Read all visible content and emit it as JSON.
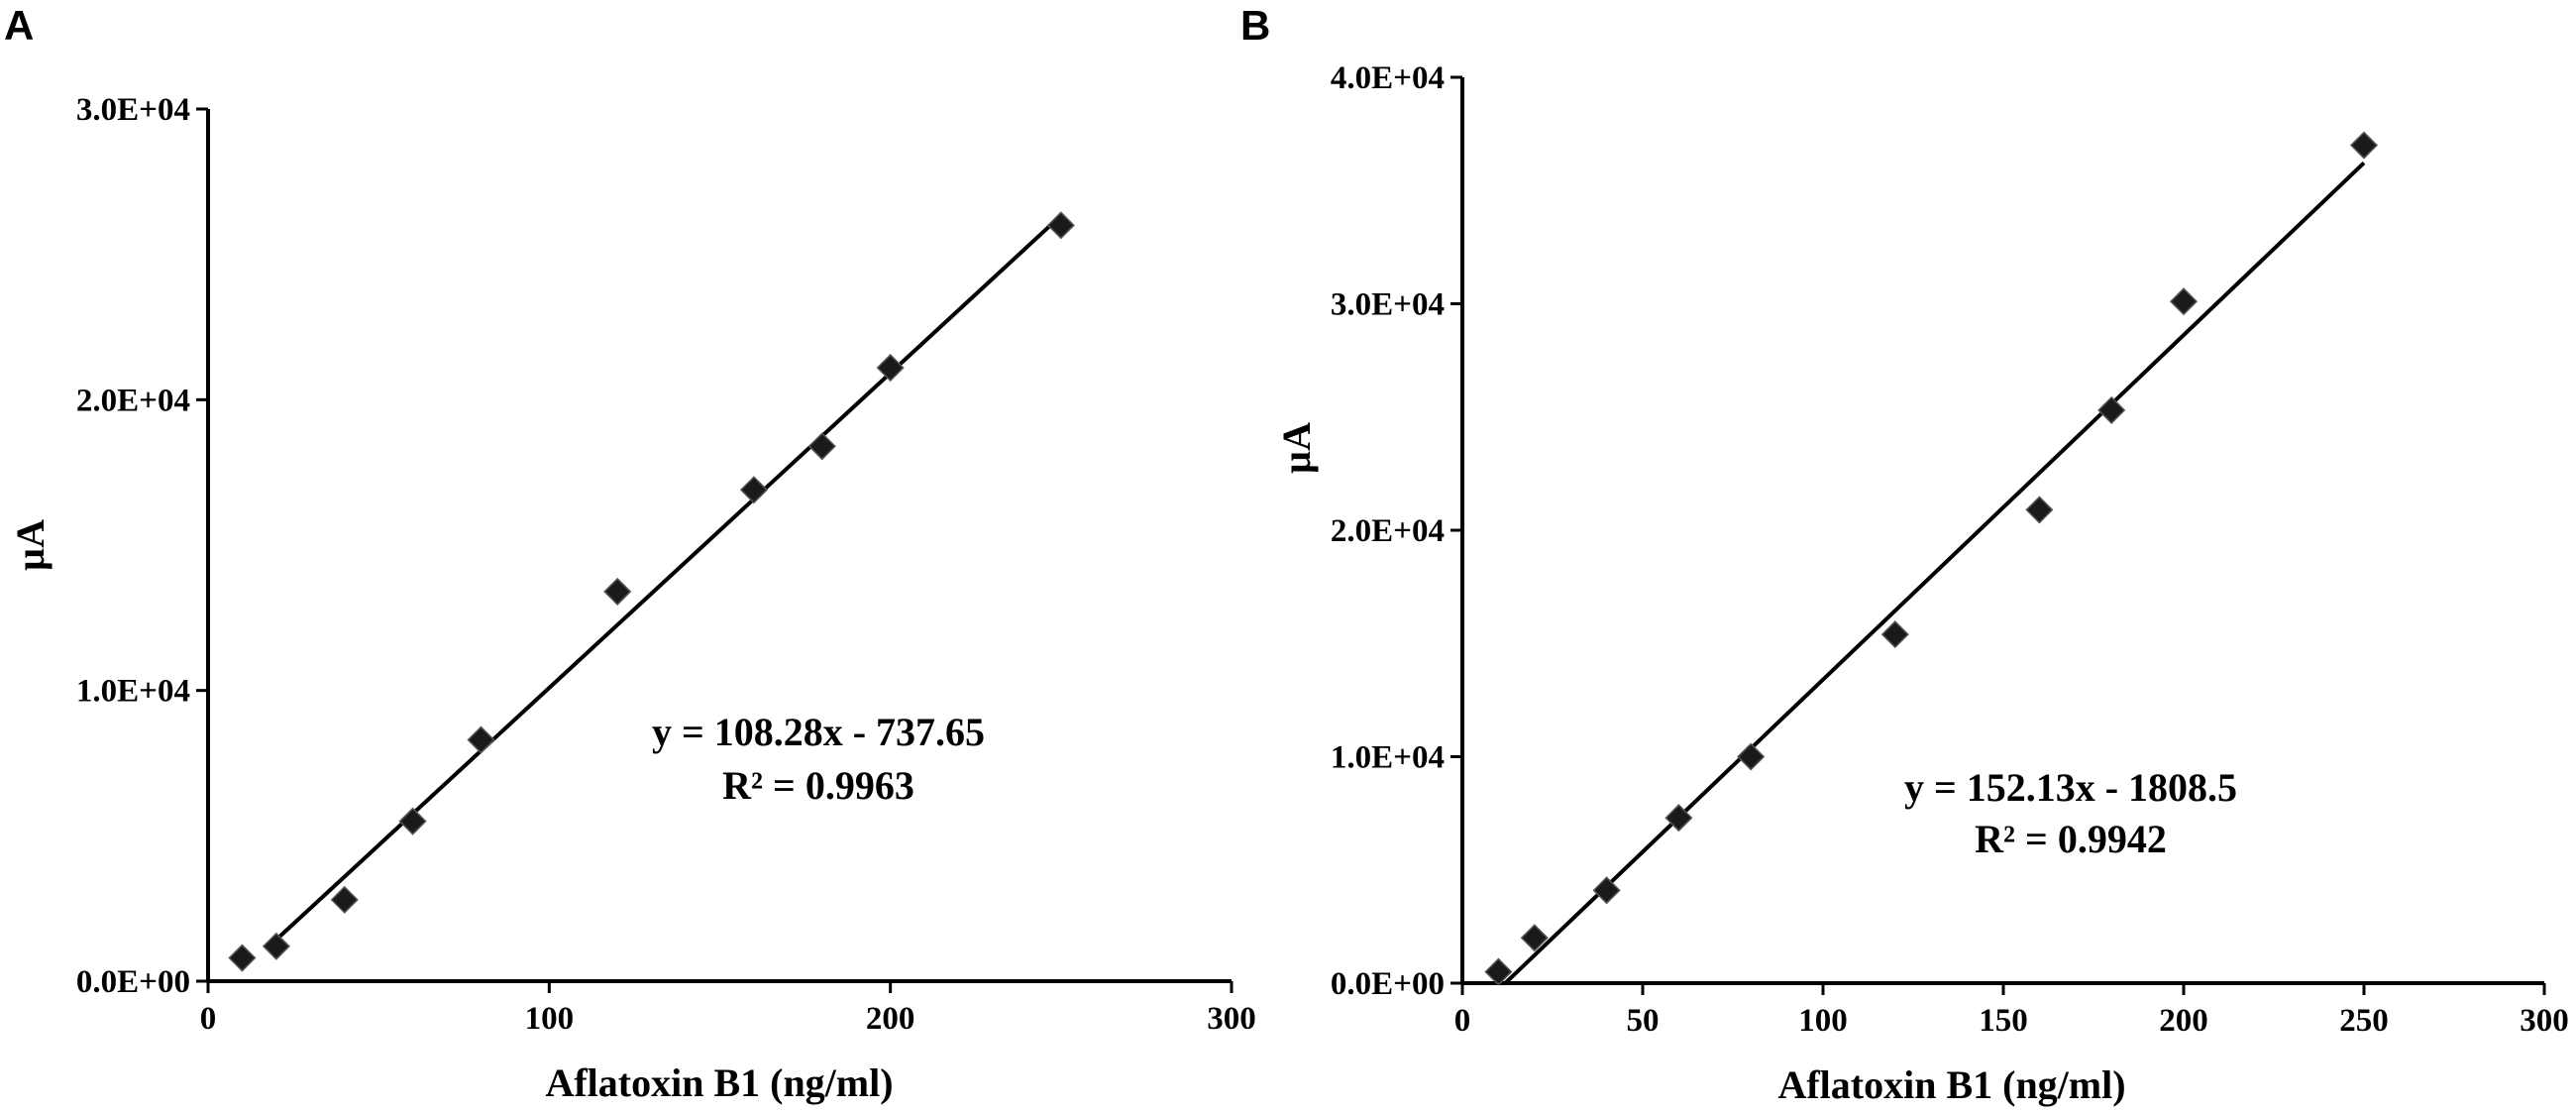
{
  "chart_data": [
    {
      "panel": "A",
      "type": "scatter",
      "xlabel": "Aflatoxin B1 (ng/ml)",
      "ylabel": "µA",
      "xlim": [
        0,
        300
      ],
      "ylim": [
        0,
        30000
      ],
      "x_ticks": [
        "0",
        "100",
        "200",
        "300"
      ],
      "y_ticks": [
        "0.0E+00",
        "1.0E+04",
        "2.0E+04",
        "3.0E+04"
      ],
      "series": [
        {
          "x": [
            10,
            20,
            40,
            60,
            80,
            120,
            160,
            180,
            200,
            250
          ],
          "y": [
            800,
            1200,
            2800,
            5500,
            8300,
            13400,
            16900,
            18400,
            21100,
            26000
          ]
        }
      ],
      "trendline": {
        "slope": 108.28,
        "intercept": -737.65,
        "x_range": [
          17,
          250
        ]
      },
      "equation": "y = 108.28x - 737.65",
      "r2": "R² = 0.9963"
    },
    {
      "panel": "B",
      "type": "scatter",
      "xlabel": "Aflatoxin B1 (ng/ml)",
      "ylabel": "µA",
      "xlim": [
        0,
        300
      ],
      "ylim": [
        0,
        40000
      ],
      "x_ticks": [
        "0",
        "50",
        "100",
        "150",
        "200",
        "250",
        "300"
      ],
      "y_ticks": [
        "0.0E+00",
        "1.0E+04",
        "2.0E+04",
        "3.0E+04",
        "4.0E+04"
      ],
      "series": [
        {
          "x": [
            10,
            20,
            40,
            60,
            80,
            120,
            160,
            180,
            200,
            250
          ],
          "y": [
            500,
            2000,
            4100,
            7300,
            10000,
            15400,
            20900,
            25300,
            30100,
            37000
          ]
        }
      ],
      "trendline": {
        "slope": 152.13,
        "intercept": -1808.5,
        "x_range": [
          11.9,
          250
        ]
      },
      "equation": "y = 152.13x - 1808.5",
      "r2": "R² = 0.9942"
    }
  ]
}
